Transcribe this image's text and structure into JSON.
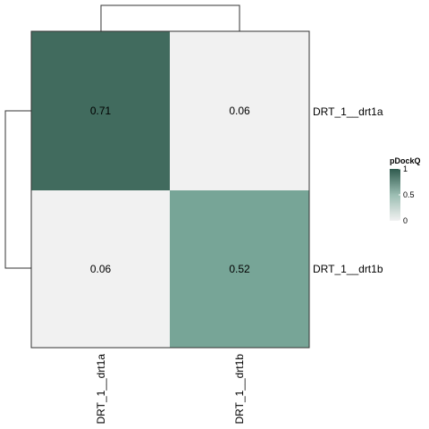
{
  "chart_data": {
    "type": "heatmap",
    "rows": [
      "DRT_1__drt1a",
      "DRT_1__drt1b"
    ],
    "columns": [
      "DRT_1__drt1a",
      "DRT_1__drt1b"
    ],
    "values": [
      [
        0.71,
        0.06
      ],
      [
        0.06,
        0.52
      ]
    ],
    "cell_labels": [
      [
        "0.71",
        "0.06"
      ],
      [
        "0.06",
        "0.52"
      ]
    ],
    "color_scale": {
      "min": 0,
      "max": 1,
      "low_color": "#f1f1f1",
      "high_color": "#2f5a4e"
    },
    "cell_colors": [
      [
        "#416b5e",
        "#f1f1f1"
      ],
      [
        "#f1f1f1",
        "#77a597"
      ]
    ],
    "legend": {
      "title": "pDockQ",
      "ticks": [
        "1",
        "0.5",
        "0"
      ],
      "tick_values": [
        1,
        0.5,
        0
      ],
      "placement": "right"
    },
    "row_dendrogram": true,
    "column_dendrogram": true,
    "border_color": "#333333"
  }
}
